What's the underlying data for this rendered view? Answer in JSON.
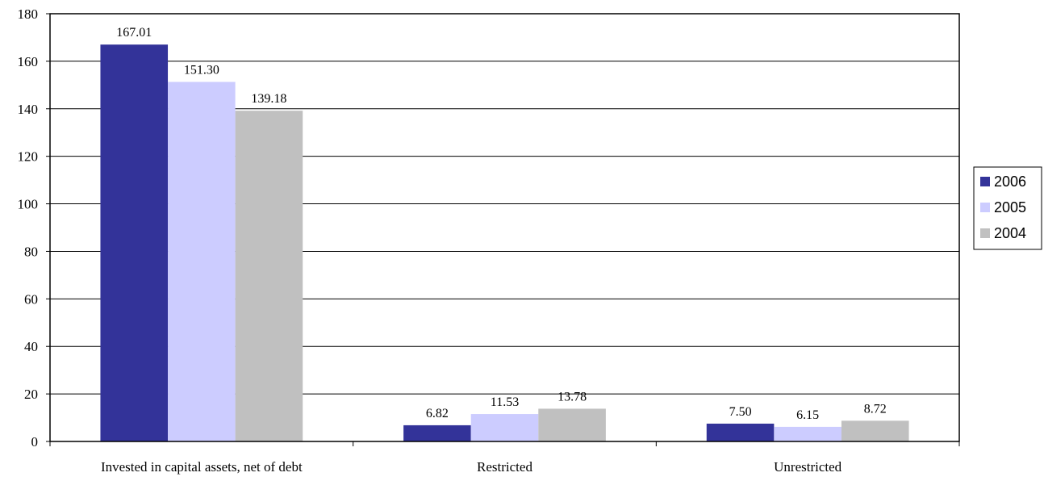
{
  "chart_data": {
    "type": "bar",
    "categories": [
      "Invested in capital assets, net of debt",
      "Restricted",
      "Unrestricted"
    ],
    "series": [
      {
        "name": "2006",
        "color": "#333399",
        "values": [
          167.01,
          6.82,
          7.5
        ]
      },
      {
        "name": "2005",
        "color": "#ccccff",
        "values": [
          151.3,
          11.53,
          6.15
        ]
      },
      {
        "name": "2004",
        "color": "#c0c0c0",
        "values": [
          139.18,
          13.78,
          8.72
        ]
      }
    ],
    "data_labels": [
      [
        "167.01",
        "6.82",
        "7.50"
      ],
      [
        "151.30",
        "11.53",
        "6.15"
      ],
      [
        "139.18",
        "13.78",
        "8.72"
      ]
    ],
    "ylim": [
      0,
      180
    ],
    "yticks": [
      "0",
      "20",
      "40",
      "60",
      "80",
      "100",
      "120",
      "140",
      "160",
      "180"
    ],
    "grid": true,
    "legend_position": "right"
  }
}
